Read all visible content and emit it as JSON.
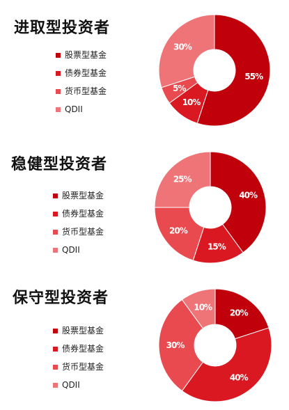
{
  "chart_data": [
    {
      "type": "pie",
      "title": "进取型投资者",
      "categories": [
        "股票型基金",
        "债券型基金",
        "货币型基金",
        "QDII"
      ],
      "values": [
        55,
        10,
        5,
        30
      ],
      "value_labels": [
        "55%",
        "10%",
        "5%",
        "30%"
      ],
      "colors": [
        "#c0000b",
        "#d91822",
        "#e84a4f",
        "#ef7478"
      ],
      "donut": true,
      "legend": "left"
    },
    {
      "type": "pie",
      "title": "稳健型投资者",
      "categories": [
        "股票型基金",
        "债券型基金",
        "货币型基金",
        "QDII"
      ],
      "values": [
        40,
        15,
        20,
        25
      ],
      "value_labels": [
        "40%",
        "15%",
        "20%",
        "25%"
      ],
      "colors": [
        "#c0000b",
        "#d91822",
        "#e84a4f",
        "#ef7478"
      ],
      "donut": true,
      "legend": "left"
    },
    {
      "type": "pie",
      "title": "保守型投资者",
      "categories": [
        "股票型基金",
        "债券型基金",
        "货币型基金",
        "QDII"
      ],
      "values": [
        20,
        40,
        30,
        10
      ],
      "value_labels": [
        "20%",
        "40%",
        "30%",
        "10%"
      ],
      "colors": [
        "#c0000b",
        "#d91822",
        "#e84a4f",
        "#ef7478"
      ],
      "donut": true,
      "legend": "left"
    }
  ]
}
